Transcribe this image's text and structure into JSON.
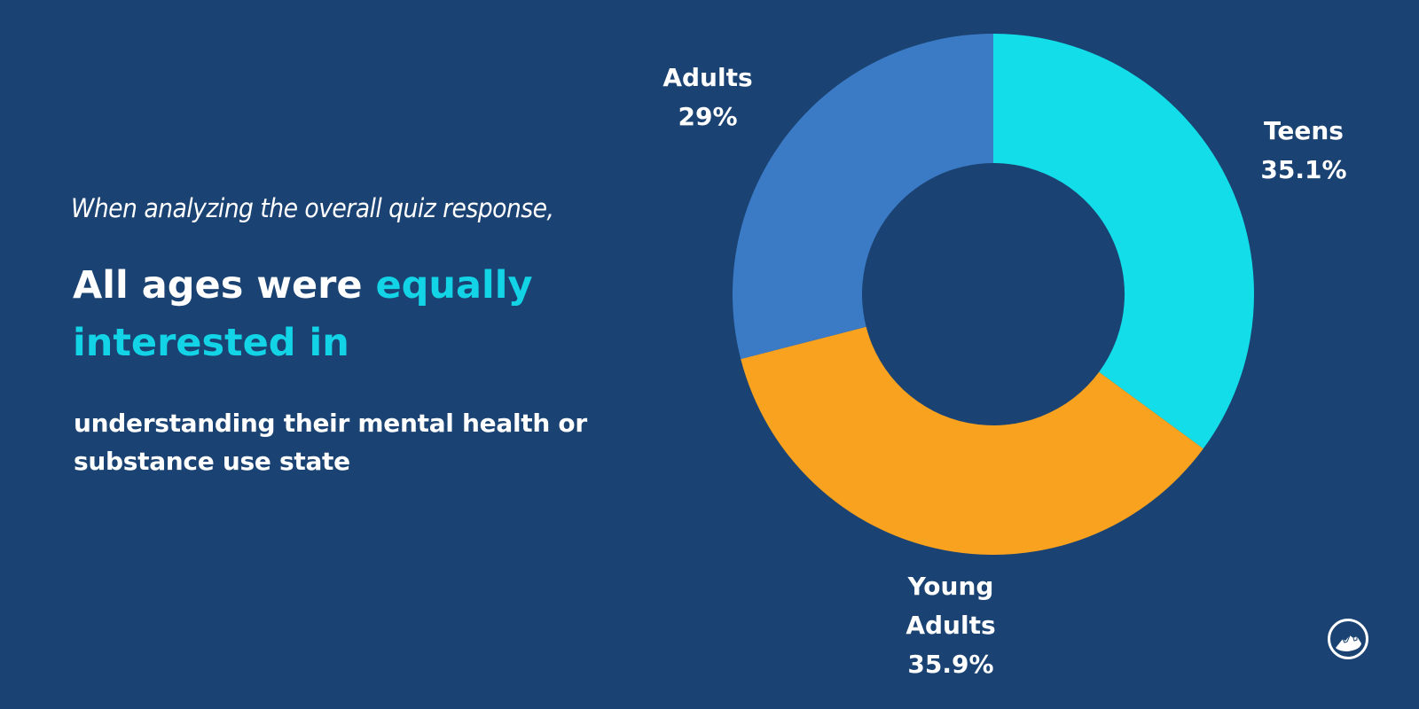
{
  "text": {
    "intro": "When analyzing the overall quiz response,",
    "headline_white": "All ages were ",
    "headline_accent": "equally interested in",
    "headline_accent_line1": "equally",
    "headline_accent_line2": "interested in",
    "subheadline": "understanding their mental health or substance use state"
  },
  "colors": {
    "background": "#1a4272",
    "accent": "#12d4e6",
    "teens": "#12dde8",
    "young_adults": "#f9a21f",
    "adults": "#3b7bc6",
    "text": "#ffffff"
  },
  "labels": {
    "teens": {
      "name": "Teens",
      "value": "35.1%"
    },
    "young_adults": {
      "name_line1": "Young",
      "name_line2": "Adults",
      "value": "35.9%"
    },
    "adults": {
      "name": "Adults",
      "value": "29%"
    }
  },
  "logo": {
    "icon": "mountain-circle-logo-icon"
  },
  "chart_data": {
    "type": "pie",
    "variant": "donut",
    "title": "All ages were equally interested in understanding their mental health or substance use state",
    "subtitle": "When analyzing the overall quiz response,",
    "categories": [
      "Teens",
      "Young Adults",
      "Adults"
    ],
    "values": [
      35.1,
      35.9,
      29.0
    ],
    "unit": "%",
    "colors": [
      "#12dde8",
      "#f9a21f",
      "#3b7bc6"
    ],
    "start_angle": "12 o'clock",
    "direction": "clockwise",
    "legend": "none (direct labels)"
  }
}
